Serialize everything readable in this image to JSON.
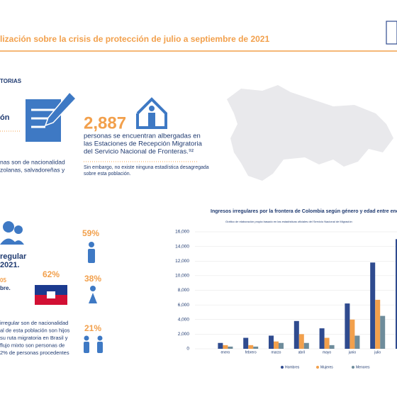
{
  "header": {
    "title": "lización sobre la crisis de protección de julio a septiembre de 2021"
  },
  "section1": {
    "heading": "TORIAS",
    "fragment": "ón",
    "left_lines": [
      "nas son de nacionalidad",
      "zolanas, salvadoreñas y"
    ],
    "big_number": "2,887",
    "body_lines": [
      "personas se encuentran albergadas en",
      "las Estaciones de Recepción Migratoria",
      "del Servicio Nacional de Fronteras.⁹²"
    ],
    "note_lines": [
      "Sin embargo, no existe ninguna estadística desagregada",
      "sobre esta población."
    ]
  },
  "section2": {
    "lines": [
      "regular",
      "2021."
    ],
    "small_orange": "05",
    "small_dark": "bre.",
    "haiti_pct": "62%",
    "men_pct": "59%",
    "women_pct": "38%",
    "minors_pct": "21%",
    "bottom_lines": [
      "irregular son de nacionalidad",
      "al de esta población son hijos",
      "su ruta migratoria en Brasil y",
      "flujo mixto son personas de",
      "2% de personas procedentes"
    ]
  },
  "chart_data": {
    "type": "bar",
    "title": "Ingresos irregulares por la frontera de Colombia según género y edad entre enero y octubre",
    "subtitle": "Gráfico de elaboración propia basado en las estadísticas oficiales del Servicio Nacional de Migración",
    "categories": [
      "enero",
      "febrero",
      "marzo",
      "abril",
      "mayo",
      "junio",
      "julio",
      null
    ],
    "series": [
      {
        "name": "Hombres",
        "color": "#2f4b8f",
        "values": [
          800,
          1500,
          1800,
          3800,
          2800,
          6200,
          11800,
          15000
        ]
      },
      {
        "name": "Mujeres",
        "color": "#f2a04c",
        "values": [
          500,
          500,
          1000,
          2000,
          1500,
          4000,
          6700,
          null
        ]
      },
      {
        "name": "Menores",
        "color": "#6e8c9b",
        "values": [
          300,
          300,
          800,
          800,
          500,
          1800,
          4500,
          null
        ]
      }
    ],
    "ylim": [
      0,
      16000
    ],
    "yticks": [
      0,
      {
        "value": 2000,
        "label": "2,000"
      },
      {
        "value": 4000,
        "label": "4,000"
      },
      {
        "value": 6000,
        "label": "6,000"
      },
      {
        "value": 8000,
        "label": "8,000"
      },
      {
        "value": 10000,
        "label": "10,000"
      },
      {
        "value": 12000,
        "label": "12,000"
      },
      {
        "value": 14000,
        "label": "14,000"
      },
      {
        "value": 16000,
        "label": "16,000"
      }
    ],
    "grid": true
  }
}
